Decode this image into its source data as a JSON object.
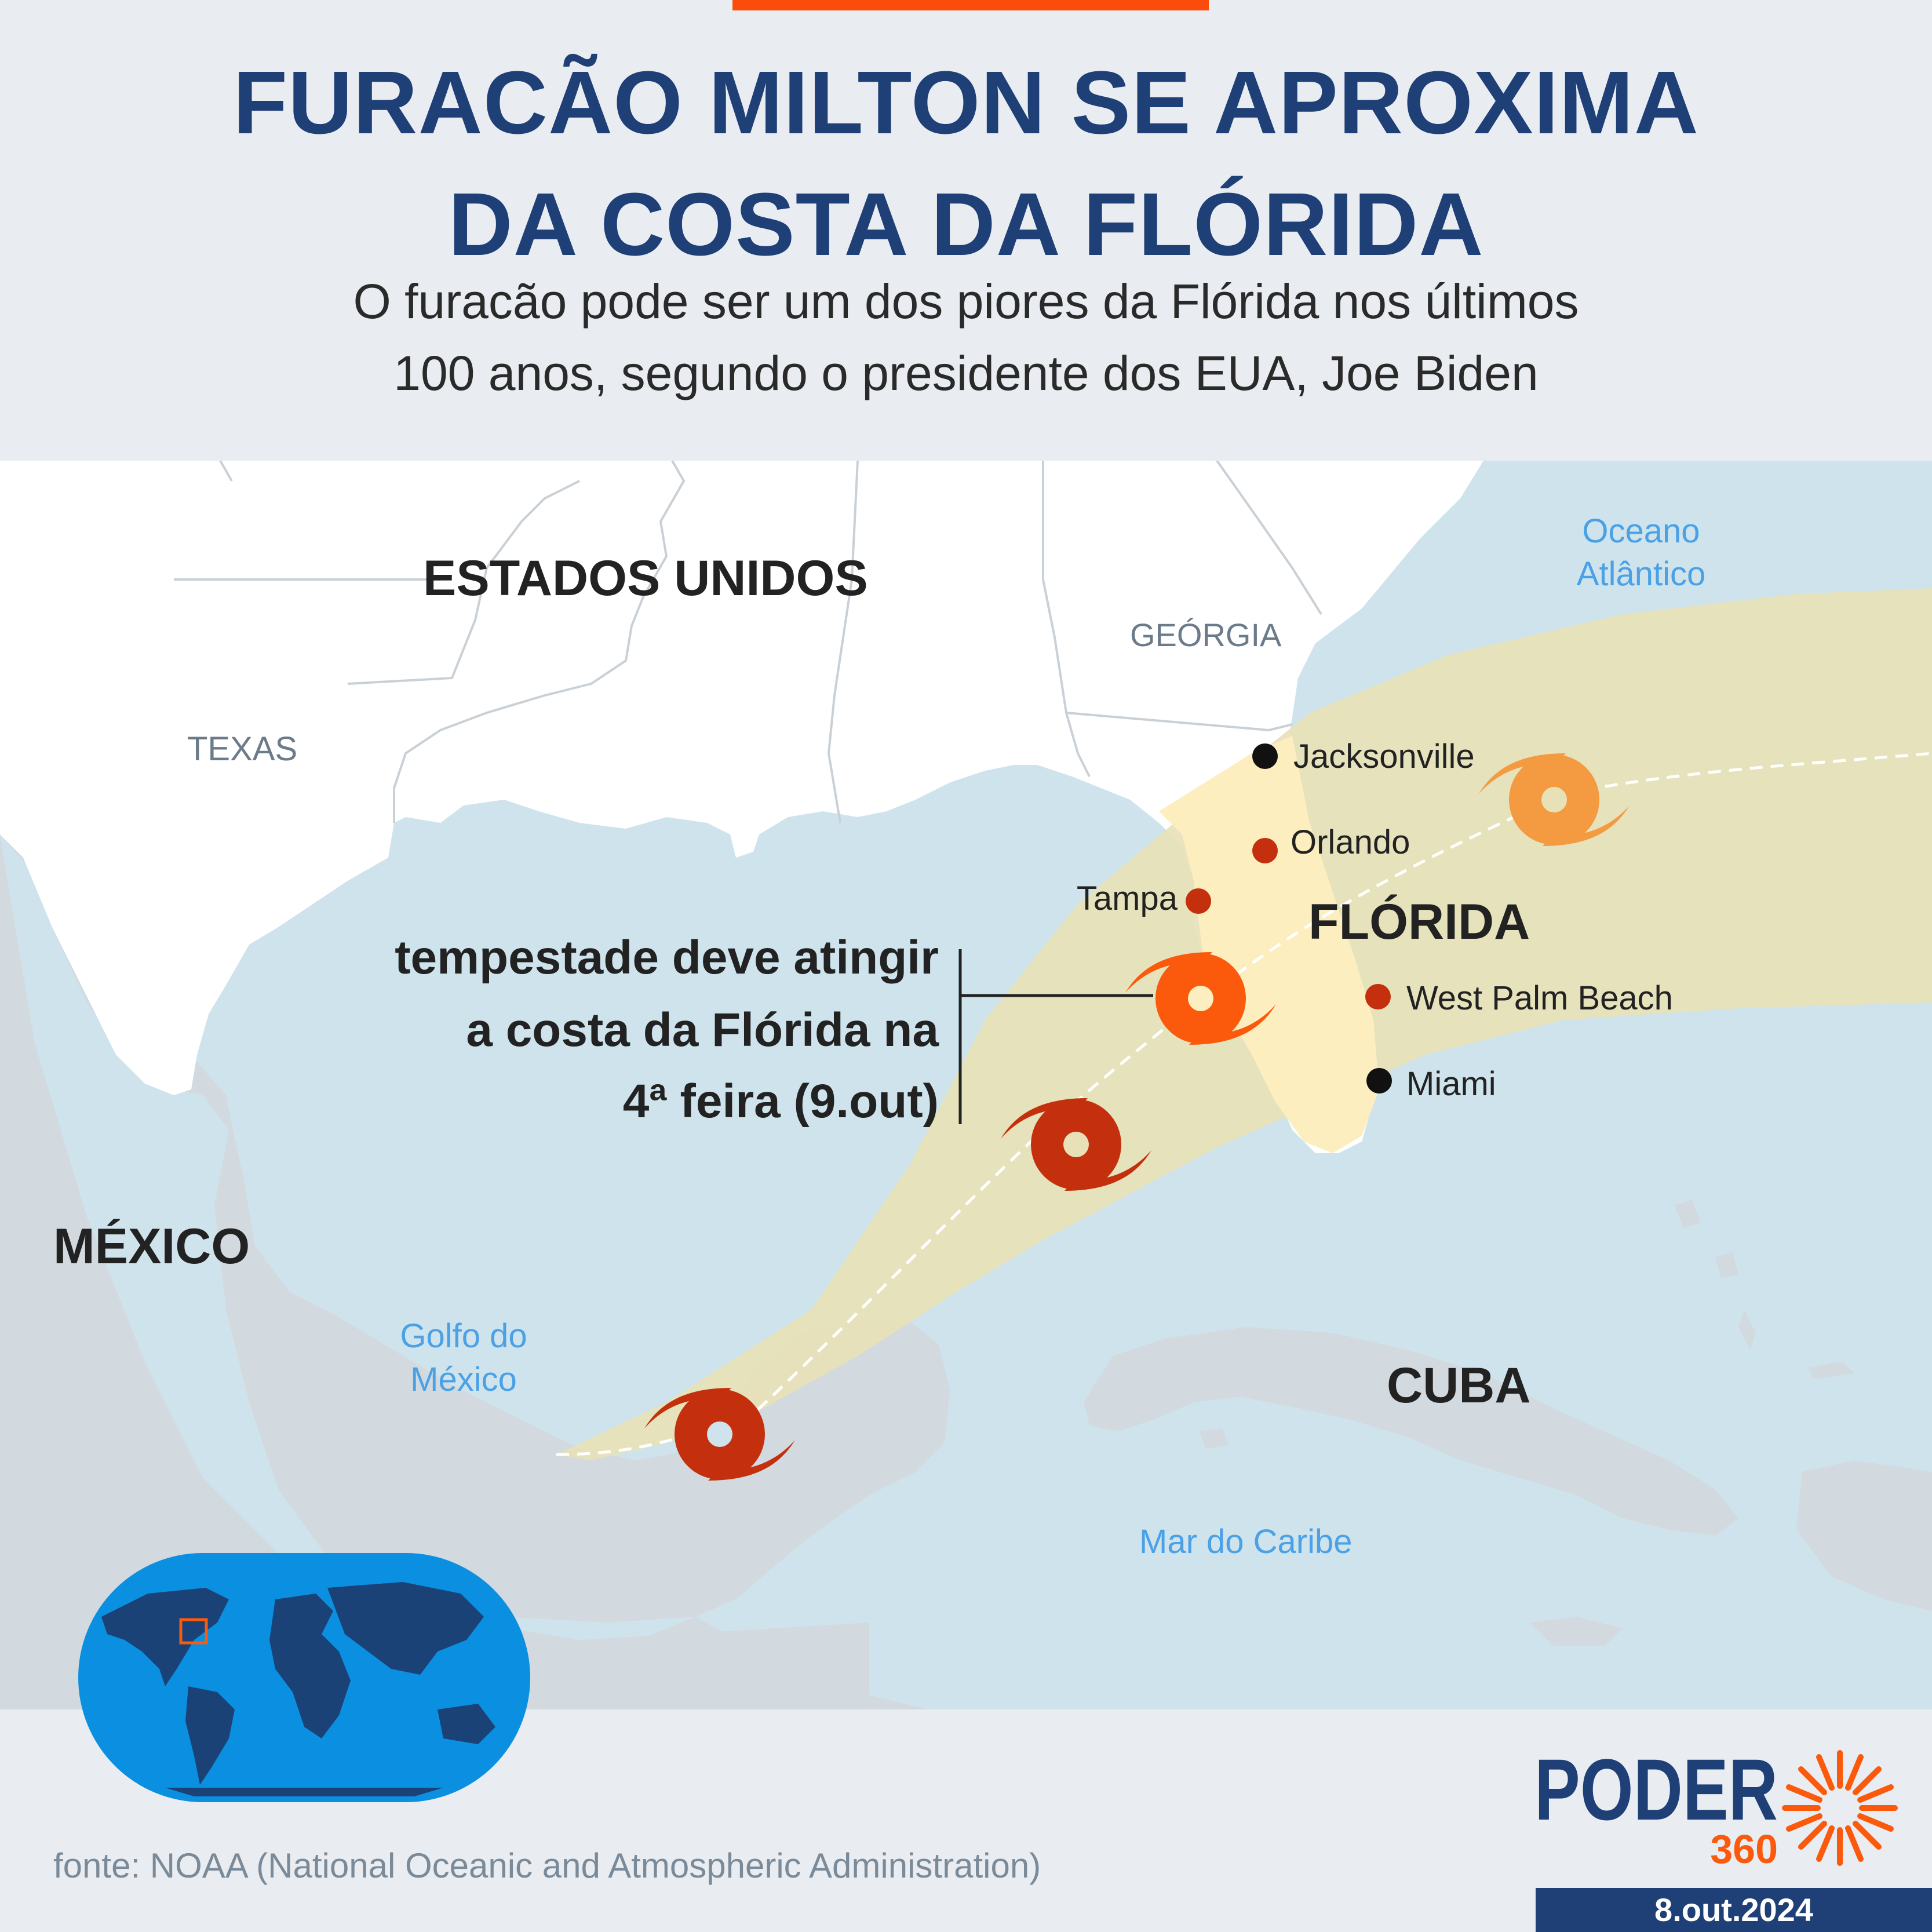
{
  "header": {
    "title_line1": "FURACÃO MILTON SE APROXIMA",
    "title_line2": "DA COSTA DA FLÓRIDA",
    "subtitle_line1": "O furacão pode ser um dos piores da Flórida nos últimos",
    "subtitle_line2": "100 anos, segundo o presidente dos EUA, Joe Biden"
  },
  "map": {
    "regions": {
      "usa": "ESTADOS UNIDOS",
      "texas": "TEXAS",
      "georgia": "GEÓRGIA",
      "florida": "FLÓRIDA",
      "mexico": "MÉXICO",
      "cuba": "CUBA"
    },
    "water": {
      "atlantic_line1": "Oceano",
      "atlantic_line2": "Atlântico",
      "gulf_line1": "Golfo do",
      "gulf_line2": "México",
      "caribbean": "Mar do Caribe"
    },
    "cities": [
      {
        "name": "Jacksonville",
        "color": "#111111"
      },
      {
        "name": "Orlando",
        "color": "#c4300d"
      },
      {
        "name": "Tampa",
        "color": "#c4300d"
      },
      {
        "name": "West Palm Beach",
        "color": "#c4300d"
      },
      {
        "name": "Miami",
        "color": "#111111"
      }
    ],
    "annotation": {
      "line1": "tempestade deve atingir",
      "line2": "a costa da Flórida na",
      "line3": "4ª feira (9.out)"
    },
    "hurricane_colors": [
      "#c4300d",
      "#c4300d",
      "#fb5a0c",
      "#f49a40"
    ],
    "colors": {
      "water": "#cfe3ec",
      "land": "#ffffff",
      "foreign_land": "#d2dae0",
      "cone": "#e8e1b7",
      "florida_warning": "#fdeebf"
    }
  },
  "footer": {
    "source": "fonte: NOAA (National Oceanic and Atmospheric Administration)",
    "logo_word": "PODER",
    "logo_number": "360",
    "date": "8.out.2024"
  }
}
